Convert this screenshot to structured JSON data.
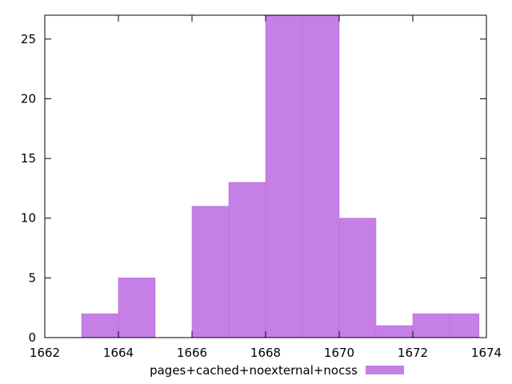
{
  "chart_data": {
    "type": "bar",
    "bins": [
      {
        "x0": 1663,
        "x1": 1664,
        "value": 2
      },
      {
        "x0": 1664,
        "x1": 1665,
        "value": 5
      },
      {
        "x0": 1665,
        "x1": 1666,
        "value": 0
      },
      {
        "x0": 1666,
        "x1": 1667,
        "value": 11
      },
      {
        "x0": 1667,
        "x1": 1668,
        "value": 13
      },
      {
        "x0": 1668,
        "x1": 1669,
        "value": 27
      },
      {
        "x0": 1669,
        "x1": 1670,
        "value": 27
      },
      {
        "x0": 1670,
        "x1": 1671,
        "value": 10
      },
      {
        "x0": 1671,
        "x1": 1672,
        "value": 1
      },
      {
        "x0": 1672,
        "x1": 1673,
        "value": 2
      },
      {
        "x0": 1673,
        "x1": 1673.8,
        "value": 2
      }
    ],
    "series": [
      {
        "name": "pages+cached+noexternal+nocss",
        "color": "#c77fe8"
      }
    ],
    "xlim": [
      1662,
      1674
    ],
    "ylim": [
      0,
      27
    ],
    "x_ticks": [
      1662,
      1664,
      1666,
      1668,
      1670,
      1672,
      1674
    ],
    "y_ticks": [
      0,
      5,
      10,
      15,
      20,
      25
    ],
    "title": "",
    "xlabel": "",
    "ylabel": "",
    "grid": false,
    "legend_position": "bottom-center"
  }
}
